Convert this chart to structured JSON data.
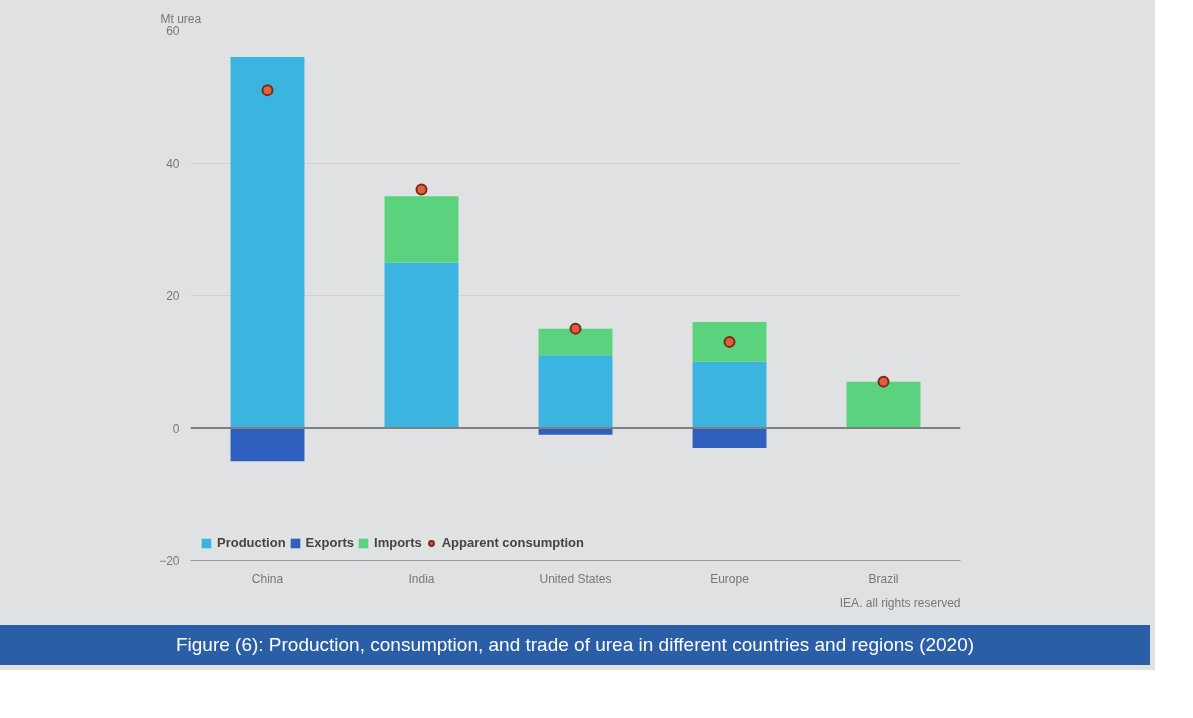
{
  "chart_data": {
    "type": "bar",
    "stacked": true,
    "title": "Figure (6): Production, consumption, and trade of urea in different countries and regions (2020)",
    "ylabel": "Mt urea",
    "categories": [
      "China",
      "India",
      "United States",
      "Europe",
      "Brazil"
    ],
    "series": [
      {
        "name": "Production",
        "color": "#3cb4e0",
        "values": [
          56,
          25,
          11,
          10,
          0
        ]
      },
      {
        "name": "Exports",
        "color": "#2f5fbf",
        "values": [
          -5,
          0,
          -1,
          -3,
          0
        ]
      },
      {
        "name": "Imports",
        "color": "#5ad27e",
        "values": [
          0,
          10,
          4,
          6,
          7
        ]
      },
      {
        "name": "Apparent consumption",
        "color": "#e0603a",
        "type": "scatter",
        "x": [
          "China",
          "India",
          "United States",
          "Europe",
          "Brazil"
        ],
        "values": [
          51,
          36,
          15,
          13,
          7
        ]
      }
    ],
    "ylim": [
      -20,
      60
    ],
    "yticks": [
      -20,
      0,
      20,
      40,
      60
    ],
    "grid": "y",
    "legend": "bottom",
    "marker": "circle",
    "ref_lines": [
      {
        "axis": "y",
        "value": 0,
        "color": "#808080"
      }
    ],
    "annotations": [
      "IEA. all rights reserved"
    ]
  }
}
